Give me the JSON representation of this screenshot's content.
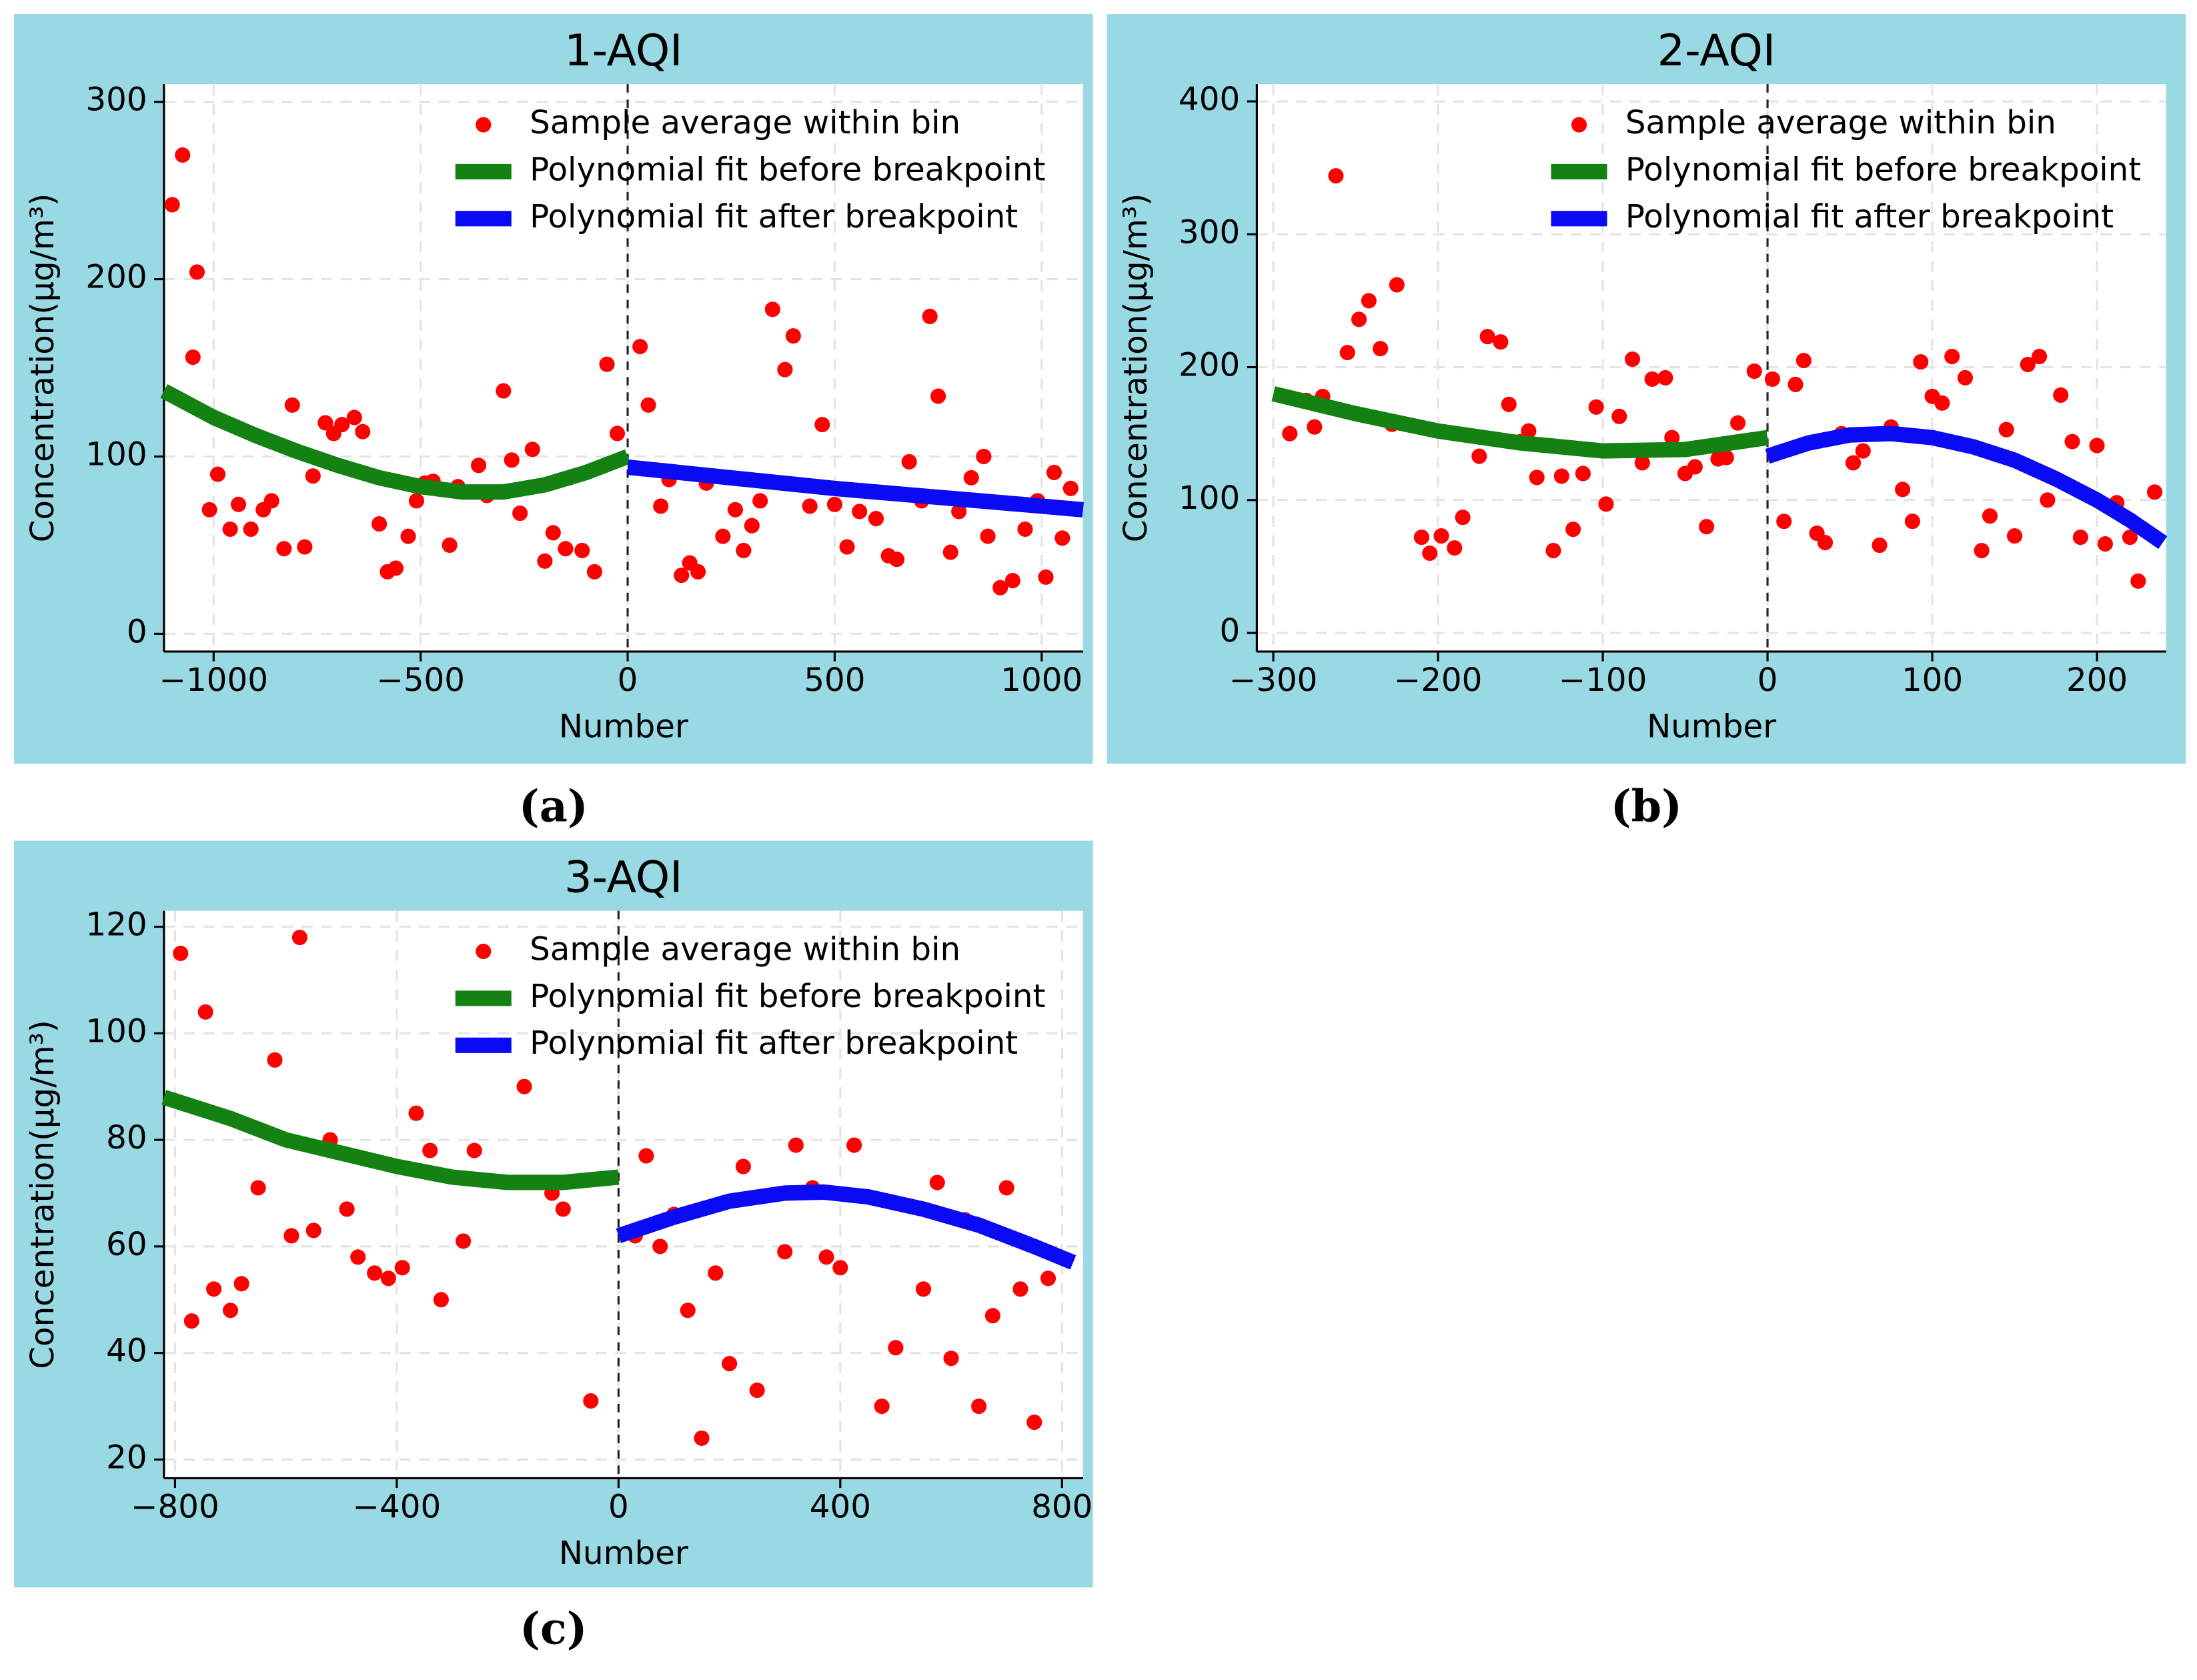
{
  "chart_data": [
    {
      "type": "scatter",
      "title": "1-AQI",
      "caption": "(a)",
      "x_label": "Number",
      "y_label": "Concentration(μg/m³)",
      "xlim": [
        -1120,
        1100
      ],
      "ylim": [
        -10,
        310
      ],
      "xticks": [
        {
          "value": -1000,
          "label": "−1000"
        },
        {
          "value": -500,
          "label": "−500"
        },
        0,
        500,
        1000
      ],
      "yticks": [
        0,
        100,
        200,
        300
      ],
      "vline": 0,
      "grid": true,
      "series": [
        {
          "name": "Sample average within bin",
          "type": "scatter",
          "color": "#ff0000",
          "x": [
            -1100,
            -1075,
            -1040,
            -1050,
            -1010,
            -990,
            -960,
            -940,
            -910,
            -880,
            -860,
            -830,
            -810,
            -780,
            -760,
            -730,
            -710,
            -690,
            -660,
            -640,
            -600,
            -580,
            -560,
            -530,
            -510,
            -490,
            -470,
            -430,
            -410,
            -360,
            -340,
            -300,
            -280,
            -260,
            -230,
            -200,
            -180,
            -150,
            -140,
            -110,
            -80,
            -50,
            -25,
            30,
            50,
            80,
            100,
            130,
            150,
            170,
            190,
            230,
            260,
            280,
            300,
            320,
            350,
            380,
            400,
            440,
            470,
            500,
            530,
            560,
            600,
            630,
            650,
            680,
            710,
            730,
            750,
            780,
            800,
            830,
            860,
            870,
            900,
            930,
            960,
            990,
            1010,
            1030,
            1050,
            1070
          ],
          "values": [
            242,
            270,
            204,
            156,
            70,
            90,
            59,
            73,
            59,
            70,
            75,
            48,
            129,
            49,
            89,
            119,
            113,
            118,
            122,
            114,
            62,
            35,
            37,
            55,
            75,
            85,
            86,
            50,
            83,
            95,
            78,
            137,
            98,
            68,
            104,
            41,
            57,
            48,
            88,
            47,
            35,
            152,
            113,
            162,
            129,
            72,
            87,
            33,
            40,
            35,
            85,
            55,
            70,
            47,
            61,
            75,
            183,
            149,
            168,
            72,
            118,
            73,
            49,
            69,
            65,
            44,
            42,
            97,
            75,
            179,
            134,
            46,
            69,
            88,
            100,
            55,
            26,
            30,
            59,
            75,
            32,
            91,
            54,
            82
          ]
        },
        {
          "name": "Polynomial fit before breakpoint",
          "type": "line",
          "color": "#138213",
          "x": [
            -1120,
            -1000,
            -900,
            -800,
            -700,
            -600,
            -500,
            -400,
            -300,
            -200,
            -100,
            0
          ],
          "values": [
            137,
            122,
            112,
            103,
            95,
            88,
            83,
            80,
            80,
            84,
            91,
            100
          ]
        },
        {
          "name": "Polynomial fit after breakpoint",
          "type": "line",
          "color": "#0a0af5",
          "x": [
            0,
            250,
            500,
            750,
            1000,
            1100
          ],
          "values": [
            94,
            88,
            82,
            77,
            72,
            70
          ]
        }
      ]
    },
    {
      "type": "scatter",
      "title": "2-AQI",
      "caption": "(b)",
      "x_label": "Number",
      "y_label": "Concentration(μg/m³)",
      "xlim": [
        -310,
        242
      ],
      "ylim": [
        -14,
        413
      ],
      "xticks": [
        {
          "value": -300,
          "label": "−300"
        },
        {
          "value": -200,
          "label": "−200"
        },
        {
          "value": -100,
          "label": "−100"
        },
        0,
        100,
        200
      ],
      "yticks": [
        0,
        100,
        200,
        300,
        400
      ],
      "vline": 0,
      "grid": true,
      "series": [
        {
          "name": "Sample average within bin",
          "type": "scatter",
          "color": "#ff0000",
          "x": [
            -290,
            -280,
            -275,
            -270,
            -262,
            -255,
            -248,
            -242,
            -235,
            -225,
            -228,
            -210,
            -205,
            -198,
            -190,
            -185,
            -175,
            -170,
            -162,
            -157,
            -150,
            -145,
            -140,
            -130,
            -125,
            -118,
            -112,
            -104,
            -98,
            -90,
            -82,
            -76,
            -70,
            -62,
            -58,
            -50,
            -44,
            -37,
            -30,
            -25,
            -18,
            -8,
            3,
            10,
            17,
            22,
            30,
            35,
            45,
            52,
            58,
            68,
            75,
            82,
            88,
            93,
            100,
            106,
            112,
            120,
            130,
            135,
            145,
            150,
            158,
            165,
            170,
            178,
            185,
            190,
            200,
            205,
            212,
            220,
            225,
            235
          ],
          "values": [
            150,
            175,
            155,
            178,
            344,
            211,
            236,
            250,
            214,
            262,
            157,
            72,
            60,
            73,
            64,
            87,
            133,
            223,
            219,
            172,
            144,
            152,
            117,
            62,
            118,
            78,
            120,
            170,
            97,
            163,
            206,
            128,
            191,
            192,
            147,
            120,
            125,
            80,
            131,
            132,
            158,
            197,
            191,
            84,
            187,
            205,
            75,
            68,
            150,
            128,
            137,
            66,
            155,
            108,
            84,
            204,
            178,
            173,
            208,
            192,
            62,
            88,
            153,
            73,
            202,
            208,
            100,
            179,
            144,
            72,
            141,
            67,
            98,
            72,
            39,
            106
          ]
        },
        {
          "name": "Polynomial fit before breakpoint",
          "type": "line",
          "color": "#138213",
          "x": [
            -300,
            -250,
            -200,
            -150,
            -100,
            -50,
            0
          ],
          "values": [
            180,
            165,
            152,
            143,
            137,
            138,
            147
          ]
        },
        {
          "name": "Polynomial fit after breakpoint",
          "type": "line",
          "color": "#0a0af5",
          "x": [
            0,
            25,
            50,
            75,
            100,
            125,
            150,
            175,
            200,
            220,
            240
          ],
          "values": [
            133,
            143,
            149,
            150,
            147,
            140,
            130,
            116,
            100,
            85,
            68
          ]
        }
      ]
    },
    {
      "type": "scatter",
      "title": "3-AQI",
      "caption": "(c)",
      "x_label": "Number",
      "y_label": "Concentration(μg/m³)",
      "xlim": [
        -820,
        838
      ],
      "ylim": [
        16.5,
        123
      ],
      "xticks": [
        {
          "value": -800,
          "label": "−800"
        },
        {
          "value": -400,
          "label": "−400"
        },
        0,
        400,
        800
      ],
      "yticks": [
        20,
        40,
        60,
        80,
        100,
        120
      ],
      "vline": 0,
      "grid": true,
      "series": [
        {
          "name": "Sample average within bin",
          "type": "scatter",
          "color": "#ff0000",
          "x": [
            -790,
            -770,
            -745,
            -730,
            -700,
            -680,
            -650,
            -620,
            -590,
            -575,
            -550,
            -520,
            -490,
            -470,
            -440,
            -415,
            -390,
            -365,
            -340,
            -320,
            -280,
            -260,
            -200,
            -170,
            -120,
            -100,
            -50,
            30,
            50,
            75,
            100,
            125,
            150,
            175,
            200,
            225,
            250,
            300,
            320,
            350,
            375,
            400,
            425,
            475,
            500,
            550,
            575,
            600,
            625,
            650,
            675,
            700,
            725,
            750,
            775
          ],
          "values": [
            115,
            46,
            104,
            52,
            48,
            53,
            71,
            95,
            62,
            118,
            63,
            80,
            67,
            58,
            55,
            54,
            56,
            85,
            78,
            50,
            61,
            78,
            72,
            90,
            70,
            67,
            31,
            62,
            77,
            60,
            66,
            48,
            24,
            55,
            38,
            75,
            33,
            59,
            79,
            71,
            58,
            56,
            79,
            30,
            41,
            52,
            72,
            39,
            65,
            30,
            47,
            71,
            52,
            27,
            54
          ]
        },
        {
          "name": "Polynomial fit before breakpoint",
          "type": "line",
          "color": "#138213",
          "x": [
            -820,
            -700,
            -600,
            -500,
            -400,
            -300,
            -200,
            -100,
            0
          ],
          "values": [
            88,
            84,
            80,
            77.5,
            75,
            73,
            72,
            72,
            73
          ]
        },
        {
          "name": "Polynomial fit after breakpoint",
          "type": "line",
          "color": "#0a0af5",
          "x": [
            0,
            100,
            200,
            300,
            370,
            450,
            550,
            650,
            750,
            820
          ],
          "values": [
            62,
            65.5,
            68.5,
            70,
            70.2,
            69.3,
            67,
            64,
            60,
            57
          ]
        }
      ]
    }
  ]
}
